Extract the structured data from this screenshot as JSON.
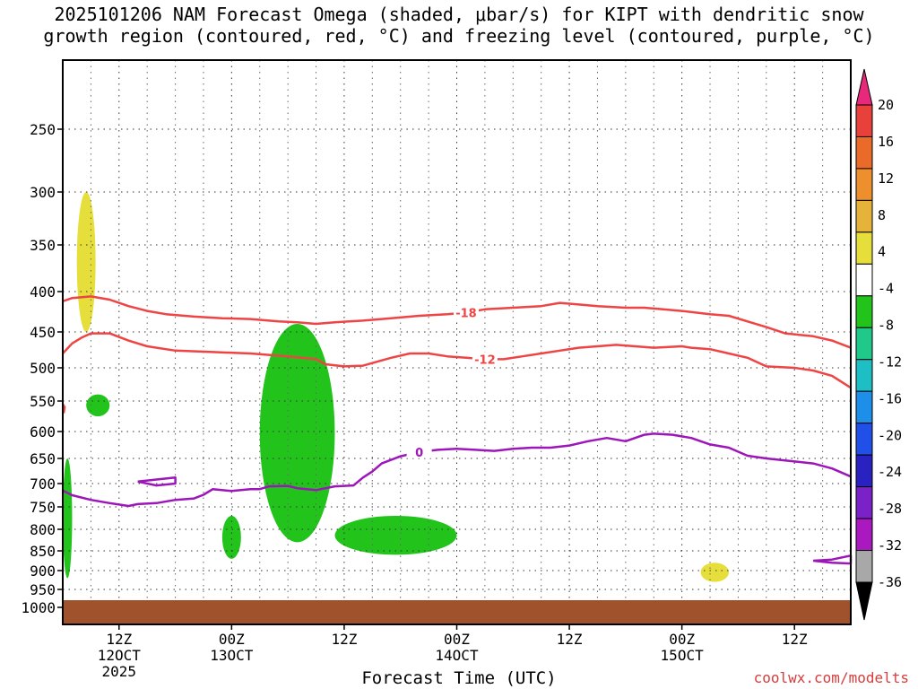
{
  "title_line1": "2025101206 NAM Forecast Omega (shaded, μbar/s) for KIPT with dendritic snow",
  "title_line2": "growth region (contoured, red, °C) and freezing level (contoured, purple, °C)",
  "xlabel": "Forecast Time (UTC)",
  "watermark": "coolwx.com/modelts",
  "chart_data": {
    "type": "contour time-height cross section",
    "title": "2025101206 NAM Forecast Omega (shaded, μbar/s) for KIPT with dendritic snow growth region (contoured, red, °C) and freezing level (contoured, purple, °C)",
    "xlabel": "Forecast Time (UTC)",
    "ylabel": "",
    "x_range_hours_from_init": [
      0,
      84
    ],
    "y_axis": "pressure (hPa), inverted",
    "y_ticks": [
      250,
      300,
      350,
      400,
      450,
      500,
      550,
      600,
      650,
      700,
      750,
      800,
      850,
      900,
      950,
      1000
    ],
    "x_ticks": [
      {
        "hour": 6,
        "label": "12Z",
        "sub": "12OCT",
        "year": "2025"
      },
      {
        "hour": 18,
        "label": "00Z",
        "sub": "13OCT",
        "year": ""
      },
      {
        "hour": 30,
        "label": "12Z",
        "sub": "",
        "year": ""
      },
      {
        "hour": 42,
        "label": "00Z",
        "sub": "14OCT",
        "year": ""
      },
      {
        "hour": 54,
        "label": "12Z",
        "sub": "",
        "year": ""
      },
      {
        "hour": 66,
        "label": "00Z",
        "sub": "15OCT",
        "year": ""
      },
      {
        "hour": 78,
        "label": "12Z",
        "sub": "",
        "year": ""
      }
    ],
    "grid": true,
    "colorbar_labels": [
      "20",
      "16",
      "12",
      "8",
      "4",
      "-4",
      "-8",
      "-12",
      "-16",
      "-20",
      "-24",
      "-28",
      "-32",
      "-36"
    ],
    "colorbar_colors": [
      "#e8287a",
      "#e8403a",
      "#ea6a2a",
      "#ec8f2c",
      "#e6b33a",
      "#e6de3a",
      "#ffffff",
      "#22c41c",
      "#20c88a",
      "#1ebfc4",
      "#1e8fe8",
      "#2050e8",
      "#2a22c0",
      "#7a22c8",
      "#aa18c0",
      "#a8a8a8",
      "#000000"
    ],
    "contour_lines": [
      {
        "field": "temperature",
        "level": -18,
        "label": "-18",
        "color": "#ee4444",
        "points": [
          [
            0,
            412
          ],
          [
            1,
            408
          ],
          [
            3,
            406
          ],
          [
            5,
            410
          ],
          [
            7,
            418
          ],
          [
            9,
            424
          ],
          [
            11,
            428
          ],
          [
            14,
            431
          ],
          [
            17,
            433
          ],
          [
            20,
            434
          ],
          [
            23,
            437
          ],
          [
            25,
            438
          ],
          [
            27,
            440
          ],
          [
            29,
            438
          ],
          [
            32,
            436
          ],
          [
            35,
            433
          ],
          [
            38,
            430
          ],
          [
            41,
            428
          ],
          [
            43,
            426
          ],
          [
            45,
            422
          ],
          [
            48,
            420
          ],
          [
            51,
            418
          ],
          [
            53,
            414
          ],
          [
            55,
            416
          ],
          [
            57,
            418
          ],
          [
            60,
            420
          ],
          [
            62,
            420
          ],
          [
            64,
            422
          ],
          [
            66,
            424
          ],
          [
            69,
            428
          ],
          [
            71,
            430
          ],
          [
            73,
            437
          ],
          [
            75,
            444
          ],
          [
            77,
            452
          ],
          [
            80,
            456
          ],
          [
            82,
            462
          ],
          [
            84,
            472
          ]
        ]
      },
      {
        "field": "temperature",
        "level": -12,
        "label": "-12",
        "color": "#ee4444",
        "points": [
          [
            0,
            480
          ],
          [
            1,
            466
          ],
          [
            2,
            458
          ],
          [
            3,
            452
          ],
          [
            5,
            452
          ],
          [
            7,
            462
          ],
          [
            9,
            470
          ],
          [
            12,
            476
          ],
          [
            16,
            478
          ],
          [
            20,
            480
          ],
          [
            24,
            484
          ],
          [
            27,
            488
          ],
          [
            28,
            495
          ],
          [
            30,
            498
          ],
          [
            32,
            497
          ],
          [
            35,
            486
          ],
          [
            37,
            480
          ],
          [
            39,
            480
          ],
          [
            41,
            484
          ],
          [
            43,
            486
          ],
          [
            45,
            488
          ],
          [
            47,
            488
          ],
          [
            49,
            484
          ],
          [
            51,
            480
          ],
          [
            53,
            476
          ],
          [
            55,
            472
          ],
          [
            57,
            470
          ],
          [
            59,
            468
          ],
          [
            61,
            470
          ],
          [
            63,
            472
          ],
          [
            66,
            470
          ],
          [
            67,
            472
          ],
          [
            69,
            474
          ],
          [
            71,
            480
          ],
          [
            73,
            486
          ],
          [
            75,
            498
          ],
          [
            78,
            500
          ],
          [
            80,
            504
          ],
          [
            82,
            512
          ],
          [
            84,
            530
          ]
        ]
      },
      {
        "field": "temperature",
        "level": -12,
        "label": "",
        "color": "#ee4444",
        "points": [
          [
            0,
            555
          ],
          [
            0.2,
            560
          ],
          [
            0.1,
            570
          ]
        ]
      },
      {
        "field": "freezing level",
        "level": 0,
        "label": "0",
        "color": "#9d16b9",
        "points": [
          [
            0,
            715
          ],
          [
            1,
            725
          ],
          [
            3,
            735
          ],
          [
            5,
            742
          ],
          [
            7,
            748
          ],
          [
            8,
            744
          ],
          [
            10,
            742
          ],
          [
            12,
            735
          ],
          [
            14,
            732
          ],
          [
            15,
            724
          ],
          [
            16,
            712
          ],
          [
            18,
            716
          ],
          [
            20,
            712
          ],
          [
            21,
            712
          ],
          [
            22,
            706
          ],
          [
            24,
            705
          ],
          [
            25,
            710
          ],
          [
            27,
            714
          ],
          [
            29,
            706
          ],
          [
            31,
            704
          ],
          [
            32,
            688
          ],
          [
            33,
            676
          ],
          [
            34,
            660
          ],
          [
            36,
            646
          ],
          [
            38,
            638
          ],
          [
            40,
            634
          ],
          [
            42,
            632
          ],
          [
            44,
            634
          ],
          [
            46,
            636
          ],
          [
            48,
            632
          ],
          [
            50,
            630
          ],
          [
            52,
            630
          ],
          [
            54,
            626
          ],
          [
            56,
            618
          ],
          [
            58,
            612
          ],
          [
            60,
            618
          ],
          [
            62,
            606
          ],
          [
            63,
            604
          ],
          [
            65,
            606
          ],
          [
            67,
            612
          ],
          [
            69,
            624
          ],
          [
            71,
            630
          ],
          [
            73,
            645
          ],
          [
            75,
            650
          ],
          [
            77,
            654
          ],
          [
            80,
            660
          ],
          [
            82,
            670
          ],
          [
            84,
            686
          ]
        ]
      },
      {
        "field": "freezing level",
        "level": 0,
        "label": "",
        "color": "#9d16b9",
        "points": [
          [
            8,
            696
          ],
          [
            10,
            692
          ],
          [
            12,
            688
          ],
          [
            12,
            700
          ],
          [
            10,
            704
          ],
          [
            8,
            696
          ]
        ]
      },
      {
        "field": "freezing level",
        "level": 0,
        "label": "",
        "color": "#9d16b9",
        "points": [
          [
            80,
            875
          ],
          [
            82,
            872
          ],
          [
            84,
            862
          ],
          [
            84,
            882
          ],
          [
            82,
            880
          ],
          [
            80,
            875
          ]
        ]
      }
    ],
    "omega_regions": [
      {
        "color": "#22c41c",
        "hours": [
          2.5,
          5
        ],
        "pressure": [
          540,
          575
        ],
        "label": ""
      },
      {
        "color": "#22c41c",
        "hours": [
          21,
          29
        ],
        "pressure": [
          440,
          830
        ],
        "label": ""
      },
      {
        "color": "#22c41c",
        "hours": [
          17,
          19
        ],
        "pressure": [
          770,
          870
        ],
        "label": ""
      },
      {
        "color": "#22c41c",
        "hours": [
          29,
          42
        ],
        "pressure": [
          770,
          860
        ],
        "label": ""
      },
      {
        "color": "#22c41c",
        "hours": [
          0,
          1
        ],
        "pressure": [
          650,
          920
        ],
        "label": ""
      },
      {
        "color": "#e6de3a",
        "hours": [
          1.5,
          3.5
        ],
        "pressure": [
          300,
          450
        ],
        "label": ""
      },
      {
        "color": "#e6de3a",
        "hours": [
          68,
          71
        ],
        "pressure": [
          880,
          930
        ],
        "label": ""
      }
    ]
  }
}
